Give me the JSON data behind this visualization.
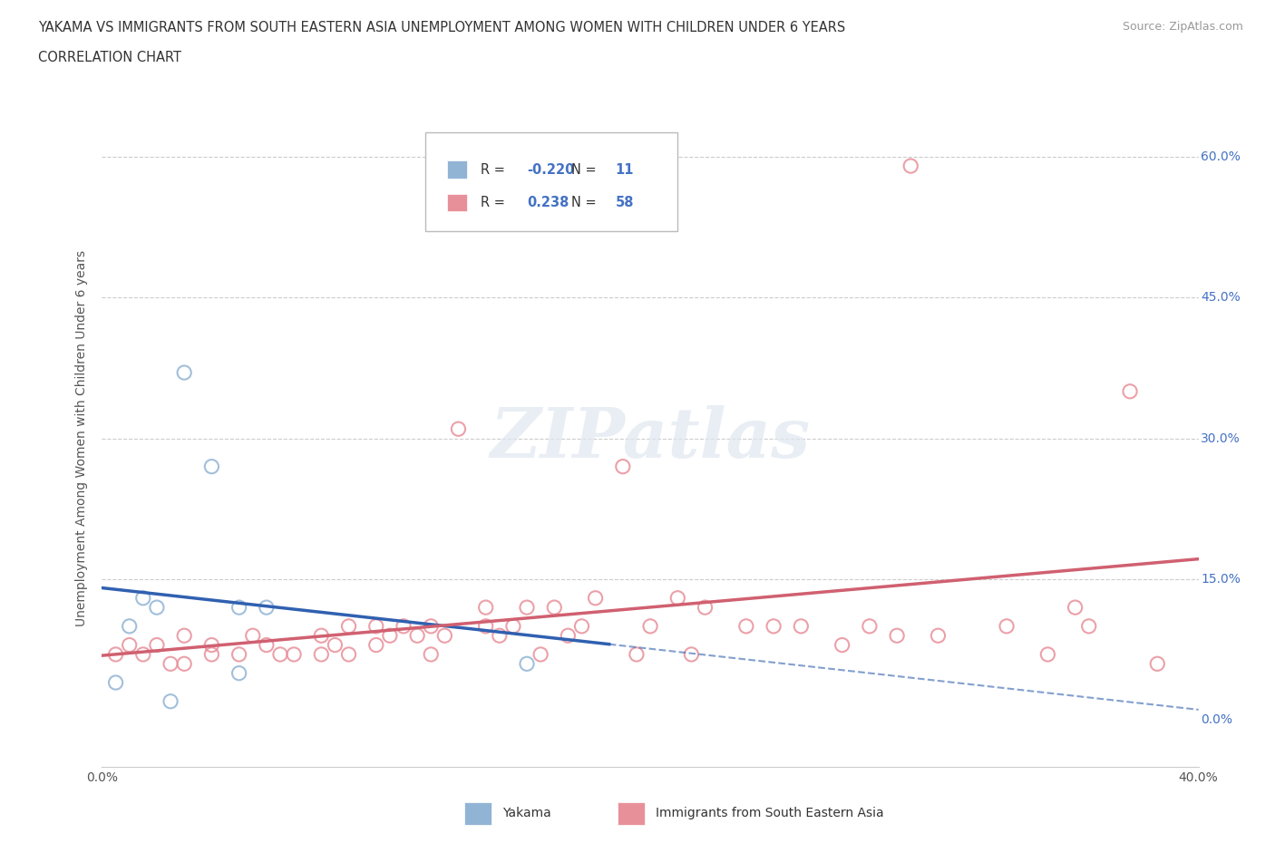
{
  "title_line1": "YAKAMA VS IMMIGRANTS FROM SOUTH EASTERN ASIA UNEMPLOYMENT AMONG WOMEN WITH CHILDREN UNDER 6 YEARS",
  "title_line2": "CORRELATION CHART",
  "source": "Source: ZipAtlas.com",
  "ylabel": "Unemployment Among Women with Children Under 6 years",
  "xlim": [
    0.0,
    0.4
  ],
  "ylim": [
    -0.05,
    0.65
  ],
  "xticks": [
    0.0,
    0.1,
    0.2,
    0.3,
    0.4
  ],
  "xtick_labels": [
    "0.0%",
    "",
    "",
    "",
    "40.0%"
  ],
  "yticks": [
    0.0,
    0.15,
    0.3,
    0.45,
    0.6
  ],
  "ytick_labels": [
    "0.0%",
    "15.0%",
    "30.0%",
    "45.0%",
    "60.0%"
  ],
  "yakama_R": -0.22,
  "yakama_N": 11,
  "immigrants_R": 0.238,
  "immigrants_N": 58,
  "yakama_color": "#92b4d4",
  "immigrants_color": "#e8909a",
  "yakama_line_color": "#3060b0",
  "immigrants_line_color": "#d06070",
  "background_color": "#ffffff",
  "watermark": "ZIPatlas",
  "yakama_x": [
    0.005,
    0.01,
    0.015,
    0.02,
    0.025,
    0.03,
    0.04,
    0.05,
    0.05,
    0.06,
    0.155
  ],
  "yakama_y": [
    0.04,
    0.1,
    0.13,
    0.12,
    0.02,
    0.37,
    0.27,
    0.12,
    0.05,
    0.12,
    0.06
  ],
  "immigrants_x": [
    0.005,
    0.01,
    0.015,
    0.02,
    0.025,
    0.03,
    0.03,
    0.04,
    0.04,
    0.05,
    0.055,
    0.06,
    0.065,
    0.07,
    0.08,
    0.08,
    0.085,
    0.09,
    0.09,
    0.1,
    0.1,
    0.105,
    0.11,
    0.115,
    0.12,
    0.12,
    0.125,
    0.13,
    0.14,
    0.14,
    0.145,
    0.15,
    0.155,
    0.16,
    0.165,
    0.17,
    0.175,
    0.18,
    0.19,
    0.195,
    0.2,
    0.21,
    0.215,
    0.22,
    0.235,
    0.245,
    0.255,
    0.27,
    0.28,
    0.29,
    0.295,
    0.305,
    0.33,
    0.345,
    0.355,
    0.36,
    0.375,
    0.385
  ],
  "immigrants_y": [
    0.07,
    0.08,
    0.07,
    0.08,
    0.06,
    0.06,
    0.09,
    0.07,
    0.08,
    0.07,
    0.09,
    0.08,
    0.07,
    0.07,
    0.07,
    0.09,
    0.08,
    0.1,
    0.07,
    0.08,
    0.1,
    0.09,
    0.1,
    0.09,
    0.1,
    0.07,
    0.09,
    0.31,
    0.1,
    0.12,
    0.09,
    0.1,
    0.12,
    0.07,
    0.12,
    0.09,
    0.1,
    0.13,
    0.27,
    0.07,
    0.1,
    0.13,
    0.07,
    0.12,
    0.1,
    0.1,
    0.1,
    0.08,
    0.1,
    0.09,
    0.59,
    0.09,
    0.1,
    0.07,
    0.12,
    0.1,
    0.35,
    0.06
  ]
}
